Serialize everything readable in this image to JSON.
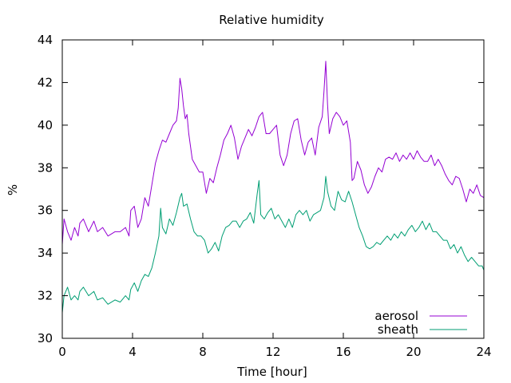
{
  "chart_data": {
    "type": "line",
    "title": "Relative humidity",
    "xlabel": "Time [hour]",
    "ylabel": "%",
    "xlim": [
      0,
      24
    ],
    "ylim": [
      30,
      44
    ],
    "xticks": [
      0,
      4,
      8,
      12,
      16,
      20,
      24
    ],
    "yticks": [
      30,
      32,
      34,
      36,
      38,
      40,
      42,
      44
    ],
    "grid": false,
    "legend_position": "bottom-right",
    "series": [
      {
        "name": "aerosol",
        "color": "#9400d3",
        "points": [
          [
            0.0,
            34.4
          ],
          [
            0.1,
            35.6
          ],
          [
            0.3,
            35.0
          ],
          [
            0.5,
            34.6
          ],
          [
            0.7,
            35.2
          ],
          [
            0.9,
            34.8
          ],
          [
            1.0,
            35.4
          ],
          [
            1.2,
            35.6
          ],
          [
            1.5,
            35.0
          ],
          [
            1.8,
            35.5
          ],
          [
            2.0,
            35.0
          ],
          [
            2.3,
            35.2
          ],
          [
            2.6,
            34.8
          ],
          [
            3.0,
            35.0
          ],
          [
            3.3,
            35.0
          ],
          [
            3.6,
            35.2
          ],
          [
            3.8,
            34.8
          ],
          [
            3.9,
            36.0
          ],
          [
            4.1,
            36.2
          ],
          [
            4.3,
            35.2
          ],
          [
            4.5,
            35.6
          ],
          [
            4.7,
            36.6
          ],
          [
            4.9,
            36.2
          ],
          [
            5.1,
            37.2
          ],
          [
            5.3,
            38.2
          ],
          [
            5.5,
            38.8
          ],
          [
            5.7,
            39.3
          ],
          [
            5.9,
            39.2
          ],
          [
            6.1,
            39.6
          ],
          [
            6.3,
            40.0
          ],
          [
            6.5,
            40.2
          ],
          [
            6.6,
            40.8
          ],
          [
            6.7,
            42.2
          ],
          [
            6.8,
            41.7
          ],
          [
            6.9,
            40.9
          ],
          [
            7.0,
            40.3
          ],
          [
            7.1,
            40.5
          ],
          [
            7.2,
            39.6
          ],
          [
            7.4,
            38.4
          ],
          [
            7.6,
            38.1
          ],
          [
            7.8,
            37.8
          ],
          [
            8.0,
            37.8
          ],
          [
            8.2,
            36.8
          ],
          [
            8.4,
            37.5
          ],
          [
            8.6,
            37.3
          ],
          [
            8.8,
            38.0
          ],
          [
            9.0,
            38.6
          ],
          [
            9.2,
            39.3
          ],
          [
            9.4,
            39.6
          ],
          [
            9.6,
            40.0
          ],
          [
            9.8,
            39.4
          ],
          [
            10.0,
            38.4
          ],
          [
            10.2,
            39.0
          ],
          [
            10.4,
            39.4
          ],
          [
            10.6,
            39.8
          ],
          [
            10.8,
            39.5
          ],
          [
            11.0,
            39.9
          ],
          [
            11.2,
            40.4
          ],
          [
            11.4,
            40.6
          ],
          [
            11.6,
            39.6
          ],
          [
            11.8,
            39.6
          ],
          [
            12.0,
            39.8
          ],
          [
            12.2,
            40.0
          ],
          [
            12.4,
            38.6
          ],
          [
            12.6,
            38.1
          ],
          [
            12.8,
            38.6
          ],
          [
            13.0,
            39.6
          ],
          [
            13.2,
            40.2
          ],
          [
            13.4,
            40.3
          ],
          [
            13.6,
            39.3
          ],
          [
            13.8,
            38.6
          ],
          [
            14.0,
            39.2
          ],
          [
            14.2,
            39.4
          ],
          [
            14.4,
            38.6
          ],
          [
            14.6,
            39.9
          ],
          [
            14.8,
            40.4
          ],
          [
            14.9,
            41.6
          ],
          [
            15.0,
            43.0
          ],
          [
            15.1,
            41.0
          ],
          [
            15.2,
            39.6
          ],
          [
            15.4,
            40.3
          ],
          [
            15.6,
            40.6
          ],
          [
            15.8,
            40.4
          ],
          [
            16.0,
            40.0
          ],
          [
            16.2,
            40.2
          ],
          [
            16.4,
            39.2
          ],
          [
            16.5,
            37.4
          ],
          [
            16.6,
            37.5
          ],
          [
            16.8,
            38.3
          ],
          [
            17.0,
            37.9
          ],
          [
            17.2,
            37.2
          ],
          [
            17.4,
            36.8
          ],
          [
            17.6,
            37.1
          ],
          [
            17.8,
            37.6
          ],
          [
            18.0,
            38.0
          ],
          [
            18.2,
            37.8
          ],
          [
            18.4,
            38.4
          ],
          [
            18.6,
            38.5
          ],
          [
            18.8,
            38.4
          ],
          [
            19.0,
            38.7
          ],
          [
            19.2,
            38.3
          ],
          [
            19.4,
            38.6
          ],
          [
            19.6,
            38.4
          ],
          [
            19.8,
            38.7
          ],
          [
            20.0,
            38.4
          ],
          [
            20.2,
            38.8
          ],
          [
            20.4,
            38.5
          ],
          [
            20.6,
            38.3
          ],
          [
            20.8,
            38.3
          ],
          [
            21.0,
            38.6
          ],
          [
            21.2,
            38.1
          ],
          [
            21.4,
            38.4
          ],
          [
            21.6,
            38.1
          ],
          [
            21.8,
            37.7
          ],
          [
            22.0,
            37.4
          ],
          [
            22.2,
            37.2
          ],
          [
            22.4,
            37.6
          ],
          [
            22.6,
            37.5
          ],
          [
            22.8,
            37.0
          ],
          [
            23.0,
            36.4
          ],
          [
            23.2,
            37.0
          ],
          [
            23.4,
            36.8
          ],
          [
            23.6,
            37.2
          ],
          [
            23.8,
            36.7
          ],
          [
            24.0,
            36.6
          ]
        ]
      },
      {
        "name": "sheath",
        "color": "#009e73",
        "points": [
          [
            0.0,
            31.2
          ],
          [
            0.1,
            32.0
          ],
          [
            0.3,
            32.4
          ],
          [
            0.5,
            31.8
          ],
          [
            0.7,
            32.0
          ],
          [
            0.9,
            31.8
          ],
          [
            1.0,
            32.2
          ],
          [
            1.2,
            32.4
          ],
          [
            1.5,
            32.0
          ],
          [
            1.8,
            32.2
          ],
          [
            2.0,
            31.8
          ],
          [
            2.3,
            31.9
          ],
          [
            2.6,
            31.6
          ],
          [
            3.0,
            31.8
          ],
          [
            3.3,
            31.7
          ],
          [
            3.6,
            32.0
          ],
          [
            3.8,
            31.8
          ],
          [
            3.9,
            32.3
          ],
          [
            4.1,
            32.6
          ],
          [
            4.3,
            32.2
          ],
          [
            4.5,
            32.7
          ],
          [
            4.7,
            33.0
          ],
          [
            4.9,
            32.9
          ],
          [
            5.1,
            33.3
          ],
          [
            5.3,
            34.0
          ],
          [
            5.5,
            34.8
          ],
          [
            5.6,
            36.1
          ],
          [
            5.7,
            35.2
          ],
          [
            5.9,
            34.9
          ],
          [
            6.1,
            35.6
          ],
          [
            6.3,
            35.3
          ],
          [
            6.5,
            35.9
          ],
          [
            6.7,
            36.6
          ],
          [
            6.8,
            36.8
          ],
          [
            6.9,
            36.2
          ],
          [
            7.1,
            36.3
          ],
          [
            7.3,
            35.6
          ],
          [
            7.5,
            35.0
          ],
          [
            7.7,
            34.8
          ],
          [
            7.9,
            34.8
          ],
          [
            8.1,
            34.6
          ],
          [
            8.3,
            34.0
          ],
          [
            8.5,
            34.2
          ],
          [
            8.7,
            34.5
          ],
          [
            8.9,
            34.1
          ],
          [
            9.1,
            34.8
          ],
          [
            9.3,
            35.2
          ],
          [
            9.5,
            35.3
          ],
          [
            9.7,
            35.5
          ],
          [
            9.9,
            35.5
          ],
          [
            10.1,
            35.2
          ],
          [
            10.3,
            35.5
          ],
          [
            10.5,
            35.6
          ],
          [
            10.7,
            35.9
          ],
          [
            10.9,
            35.4
          ],
          [
            11.1,
            36.8
          ],
          [
            11.2,
            37.4
          ],
          [
            11.3,
            35.8
          ],
          [
            11.5,
            35.6
          ],
          [
            11.7,
            35.9
          ],
          [
            11.9,
            36.1
          ],
          [
            12.1,
            35.6
          ],
          [
            12.3,
            35.8
          ],
          [
            12.5,
            35.5
          ],
          [
            12.7,
            35.2
          ],
          [
            12.9,
            35.6
          ],
          [
            13.1,
            35.2
          ],
          [
            13.3,
            35.8
          ],
          [
            13.5,
            36.0
          ],
          [
            13.7,
            35.8
          ],
          [
            13.9,
            36.0
          ],
          [
            14.1,
            35.5
          ],
          [
            14.3,
            35.8
          ],
          [
            14.5,
            35.9
          ],
          [
            14.7,
            36.0
          ],
          [
            14.9,
            36.6
          ],
          [
            15.0,
            37.6
          ],
          [
            15.1,
            36.9
          ],
          [
            15.3,
            36.2
          ],
          [
            15.5,
            36.0
          ],
          [
            15.7,
            36.9
          ],
          [
            15.9,
            36.5
          ],
          [
            16.1,
            36.4
          ],
          [
            16.3,
            36.9
          ],
          [
            16.5,
            36.4
          ],
          [
            16.7,
            35.8
          ],
          [
            16.9,
            35.2
          ],
          [
            17.1,
            34.8
          ],
          [
            17.3,
            34.3
          ],
          [
            17.5,
            34.2
          ],
          [
            17.7,
            34.3
          ],
          [
            17.9,
            34.5
          ],
          [
            18.1,
            34.4
          ],
          [
            18.3,
            34.6
          ],
          [
            18.5,
            34.8
          ],
          [
            18.7,
            34.6
          ],
          [
            18.9,
            34.9
          ],
          [
            19.1,
            34.7
          ],
          [
            19.3,
            35.0
          ],
          [
            19.5,
            34.8
          ],
          [
            19.7,
            35.1
          ],
          [
            19.9,
            35.3
          ],
          [
            20.1,
            35.0
          ],
          [
            20.3,
            35.2
          ],
          [
            20.5,
            35.5
          ],
          [
            20.7,
            35.1
          ],
          [
            20.9,
            35.4
          ],
          [
            21.1,
            35.0
          ],
          [
            21.3,
            35.0
          ],
          [
            21.5,
            34.8
          ],
          [
            21.7,
            34.6
          ],
          [
            21.9,
            34.6
          ],
          [
            22.1,
            34.2
          ],
          [
            22.3,
            34.4
          ],
          [
            22.5,
            34.0
          ],
          [
            22.7,
            34.3
          ],
          [
            22.9,
            33.9
          ],
          [
            23.1,
            33.6
          ],
          [
            23.3,
            33.8
          ],
          [
            23.5,
            33.6
          ],
          [
            23.7,
            33.4
          ],
          [
            23.9,
            33.4
          ],
          [
            24.0,
            33.2
          ]
        ]
      }
    ]
  }
}
